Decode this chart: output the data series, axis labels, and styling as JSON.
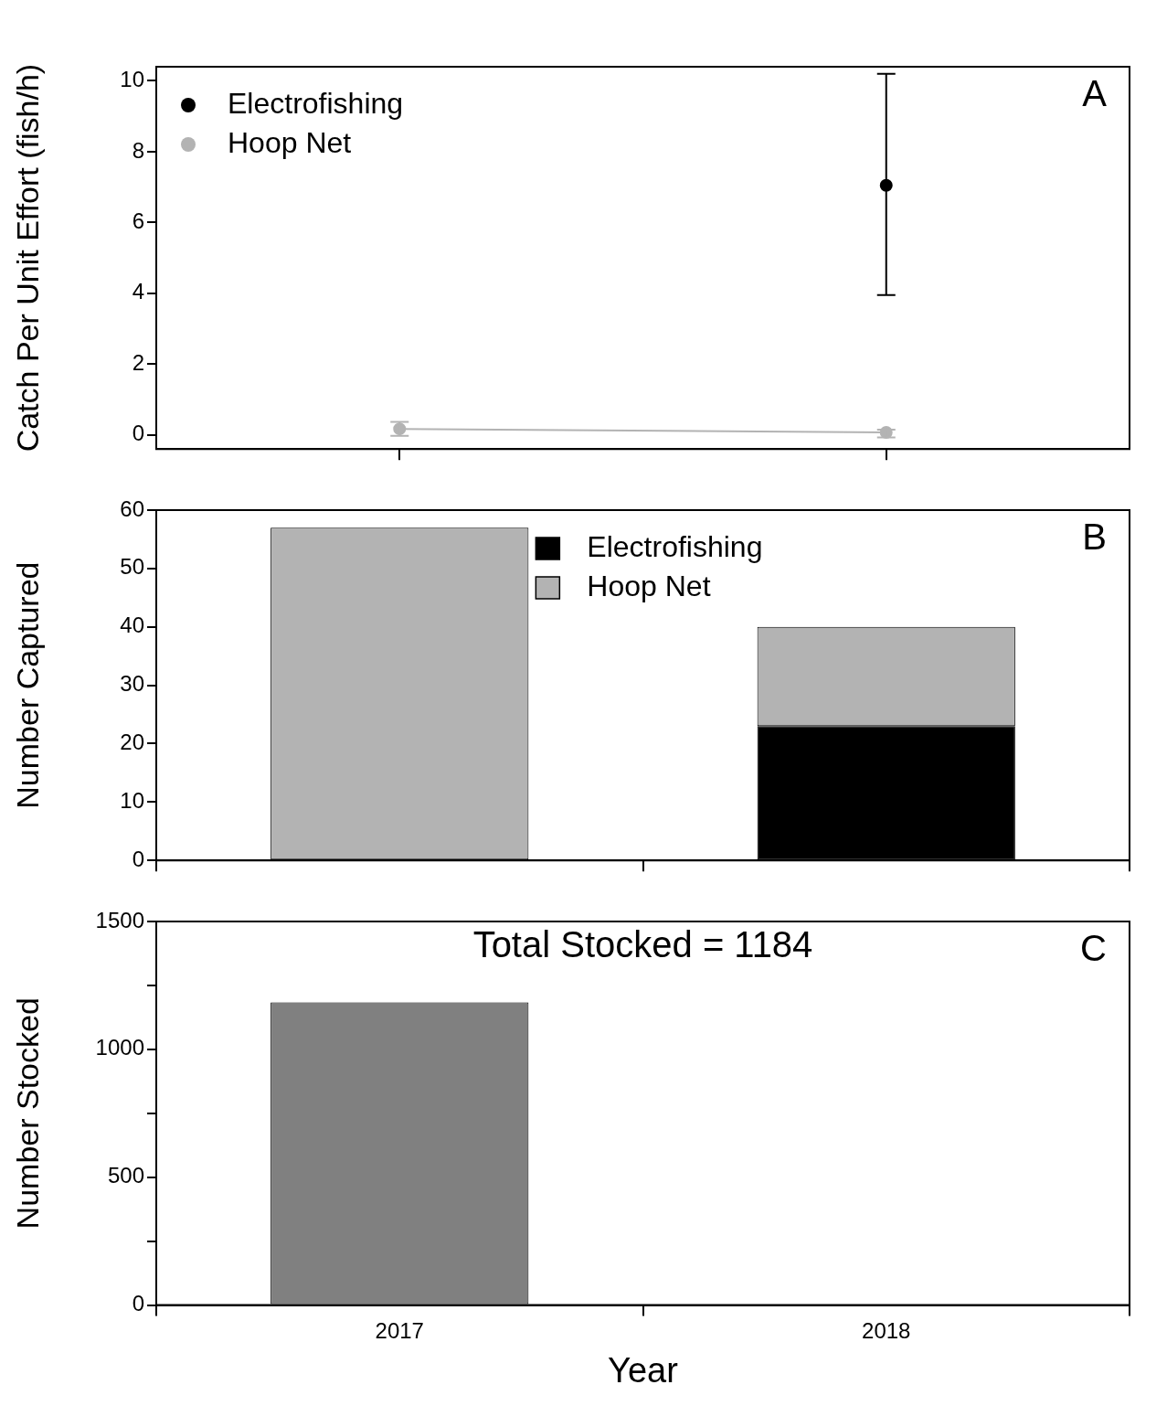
{
  "chart_data": [
    {
      "type": "line",
      "ylabel": "Catch Per Unit Effort (fish/h)",
      "categories": [
        "2017",
        "2018"
      ],
      "ylim": [
        -0.4,
        10.4
      ],
      "yticks": [
        0,
        2,
        4,
        6,
        8,
        10
      ],
      "tick_labels": "y",
      "legend": "top left",
      "marker": "circle",
      "line_style": "solid",
      "annotations": [
        "A"
      ],
      "series": [
        {
          "name": "Electrofishing",
          "color": "#000000",
          "values": [
            null,
            7.05
          ],
          "errors": [
            null,
            [
              3.95,
              10.2
            ]
          ]
        },
        {
          "name": "Hoop Net",
          "color": "#b3b3b3",
          "values": [
            0.17,
            0.07
          ],
          "errors": [
            [
              -0.03,
              0.37
            ],
            [
              -0.07,
              0.15
            ]
          ]
        }
      ]
    },
    {
      "type": "bar",
      "stacked": true,
      "ylabel": "Number Captured",
      "categories": [
        "2017",
        "2018"
      ],
      "ylim": [
        0,
        60
      ],
      "yticks": [
        0,
        10,
        20,
        30,
        40,
        50,
        60
      ],
      "tick_labels": "y",
      "legend": "top",
      "annotations": [
        "B"
      ],
      "series": [
        {
          "name": "Electrofishing",
          "color": "#000000",
          "values": [
            0,
            23
          ]
        },
        {
          "name": "Hoop Net",
          "color": "#b3b3b3",
          "values": [
            57,
            17
          ]
        }
      ]
    },
    {
      "type": "bar",
      "ylabel": "Number Stocked",
      "xlabel": "Year",
      "categories": [
        "2017",
        "2018"
      ],
      "ylim": [
        0,
        1500
      ],
      "yticks": [
        0,
        {
          "value": 250,
          "label": null
        },
        500,
        {
          "value": 750,
          "label": null
        },
        1000,
        {
          "value": 1250,
          "label": null
        },
        1500
      ],
      "annotations": [
        "Total Stocked = 1184",
        "C"
      ],
      "series": [
        {
          "color": "#808080",
          "values": [
            1184,
            null
          ]
        }
      ]
    }
  ]
}
